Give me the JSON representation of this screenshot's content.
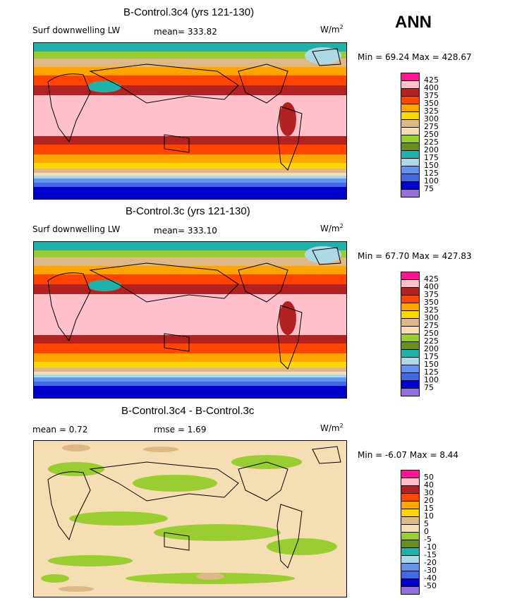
{
  "season": "ANN",
  "units": "W/m",
  "units_sup": "2",
  "panels": [
    {
      "title": "B-Control.3c4 (yrs 121-130)",
      "field": "Surf downwelling LW",
      "stat": "mean= 333.82",
      "minmax": "Min =  69.24 Max = 428.67",
      "levels": [
        "425",
        "400",
        "375",
        "350",
        "325",
        "300",
        "275",
        "250",
        "225",
        "200",
        "175",
        "150",
        "125",
        "100",
        "75"
      ],
      "colors": [
        "#ff1493",
        "#ffc0cb",
        "#b22222",
        "#ff4500",
        "#ffa500",
        "#ffd700",
        "#deb887",
        "#f5deb3",
        "#9acd32",
        "#6b8e23",
        "#20b2aa",
        "#add8e6",
        "#6495ed",
        "#4169e1",
        "#0000cd",
        "#9370db"
      ]
    },
    {
      "title": "B-Control.3c (yrs 121-130)",
      "field": "Surf downwelling LW",
      "stat": "mean= 333.10",
      "minmax": "Min =  67.70 Max = 427.83",
      "levels": [
        "425",
        "400",
        "375",
        "350",
        "325",
        "300",
        "275",
        "250",
        "225",
        "200",
        "175",
        "150",
        "125",
        "100",
        "75"
      ],
      "colors": [
        "#ff1493",
        "#ffc0cb",
        "#b22222",
        "#ff4500",
        "#ffa500",
        "#ffd700",
        "#deb887",
        "#f5deb3",
        "#9acd32",
        "#6b8e23",
        "#20b2aa",
        "#add8e6",
        "#6495ed",
        "#4169e1",
        "#0000cd",
        "#9370db"
      ]
    },
    {
      "title": "B-Control.3c4 - B-Control.3c",
      "field": "mean =   0.72",
      "stat": "rmse =   1.69",
      "minmax": "Min =  -6.07 Max =   8.44",
      "levels": [
        "50",
        "40",
        "30",
        "20",
        "15",
        "10",
        "5",
        "0",
        "-5",
        "-10",
        "-15",
        "-20",
        "-30",
        "-40",
        "-50"
      ],
      "colors": [
        "#ff1493",
        "#ffc0cb",
        "#b22222",
        "#ff4500",
        "#ffa500",
        "#ffd700",
        "#deb887",
        "#f5deb3",
        "#9acd32",
        "#6b8e23",
        "#20b2aa",
        "#add8e6",
        "#6495ed",
        "#4169e1",
        "#0000cd",
        "#9370db"
      ]
    }
  ],
  "chart_data": [
    {
      "type": "heatmap",
      "title": "B-Control.3c4 (yrs 121-130)",
      "variable": "Surf downwelling LW",
      "mean": 333.82,
      "min": 69.24,
      "max": 428.67,
      "contour_levels": [
        75,
        100,
        125,
        150,
        175,
        200,
        225,
        250,
        275,
        300,
        325,
        350,
        375,
        400,
        425
      ]
    },
    {
      "type": "heatmap",
      "title": "B-Control.3c (yrs 121-130)",
      "variable": "Surf downwelling LW",
      "mean": 333.1,
      "min": 67.7,
      "max": 427.83,
      "contour_levels": [
        75,
        100,
        125,
        150,
        175,
        200,
        225,
        250,
        275,
        300,
        325,
        350,
        375,
        400,
        425
      ]
    },
    {
      "type": "heatmap",
      "title": "B-Control.3c4 - B-Control.3c",
      "mean": 0.72,
      "rmse": 1.69,
      "min": -6.07,
      "max": 8.44,
      "contour_levels": [
        -50,
        -40,
        -30,
        -20,
        -15,
        -10,
        -5,
        0,
        5,
        10,
        15,
        20,
        30,
        40,
        50
      ]
    }
  ]
}
